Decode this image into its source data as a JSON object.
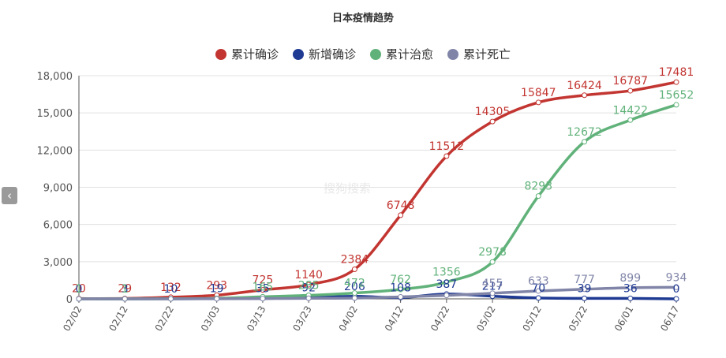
{
  "title": "日本疫情趋势",
  "watermark": "搜狗搜索",
  "nav": {
    "left_arrow_icon": "chevron-left-icon",
    "left_arrow_glyph": "‹"
  },
  "chart_data": {
    "type": "line",
    "title": "日本疫情趋势",
    "legend_position": "top-center",
    "grid": true,
    "ylim": [
      0,
      18000
    ],
    "yticks": [
      "0",
      "3,000",
      "6,000",
      "9,000",
      "12,000",
      "15,000",
      "18,000"
    ],
    "ytick_values": [
      0,
      3000,
      6000,
      9000,
      12000,
      15000,
      18000
    ],
    "xticks": [
      "02/02",
      "02/12",
      "02/22",
      "03/03",
      "03/13",
      "03/23",
      "04/02",
      "04/12",
      "04/22",
      "05/02",
      "05/12",
      "05/22",
      "06/01",
      "06/17"
    ],
    "series": [
      {
        "name": "累计确诊",
        "color": "#c23531",
        "labels": [
          "20",
          "29",
          "132",
          "293",
          "725",
          "1140",
          "2384",
          "6748",
          "11512",
          "14305",
          "15847",
          "16424",
          "16787",
          "17481"
        ],
        "values": [
          20,
          29,
          132,
          293,
          725,
          1140,
          2384,
          6748,
          11512,
          14305,
          15847,
          16424,
          16787,
          17481
        ]
      },
      {
        "name": "新增确诊",
        "color": "#1f3a93",
        "labels": [
          "0",
          "3",
          "10",
          "19",
          "35",
          "92",
          "206",
          "108",
          "387",
          "217",
          "70",
          "39",
          "36",
          "0"
        ],
        "values": [
          0,
          3,
          10,
          19,
          35,
          92,
          206,
          108,
          387,
          217,
          70,
          39,
          36,
          0
        ]
      },
      {
        "name": "累计治愈",
        "color": "#61b27a",
        "labels": [
          "1",
          "1",
          "",
          "",
          "165",
          "285",
          "472",
          "762",
          "1356",
          "2978",
          "8293",
          "12672",
          "14422",
          "15652"
        ],
        "values": [
          1,
          1,
          10,
          40,
          165,
          285,
          472,
          762,
          1356,
          2978,
          8293,
          12672,
          14422,
          15652
        ]
      },
      {
        "name": "累计死亡",
        "color": "#8085a8",
        "labels": [
          "",
          "",
          "",
          "",
          "",
          "",
          "",
          "",
          "",
          "455",
          "633",
          "777",
          "899",
          "934"
        ],
        "values": [
          0,
          0,
          1,
          6,
          21,
          45,
          62,
          162,
          277,
          455,
          633,
          777,
          899,
          934
        ]
      }
    ]
  }
}
